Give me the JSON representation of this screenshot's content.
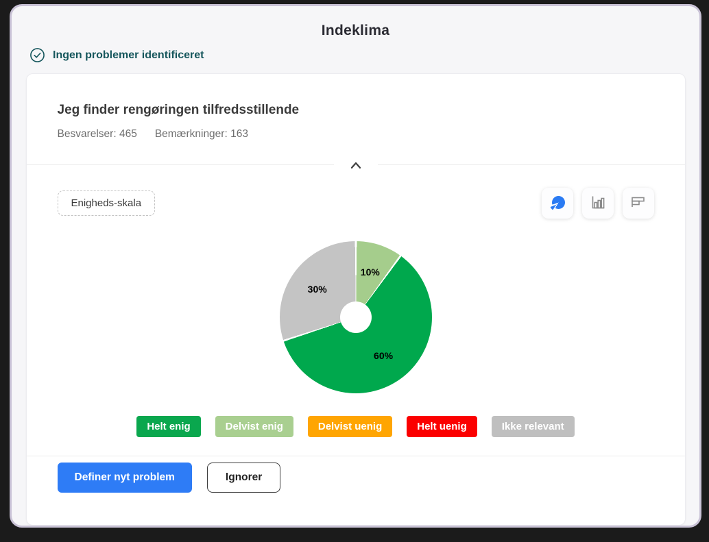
{
  "window": {
    "title": "Indeklima"
  },
  "status": {
    "label": "Ingen problemer identificeret",
    "color": "#15565c"
  },
  "card": {
    "question": "Jeg finder rengøringen tilfredsstillende",
    "responses_label": "Besvarelser: 465",
    "remarks_label": "Bemærkninger: 163"
  },
  "controls": {
    "scale_button_label": "Enigheds-skala",
    "chart_toggles": [
      {
        "id": "pie",
        "icon": "pie-chart-icon",
        "active": true,
        "accent": "#2b7bf3"
      },
      {
        "id": "bar",
        "icon": "bar-chart-icon",
        "active": false,
        "accent": "#8a8a8a"
      },
      {
        "id": "hbar",
        "icon": "horizontal-bar-chart-icon",
        "active": false,
        "accent": "#8a8a8a"
      }
    ]
  },
  "chart_data": {
    "type": "pie",
    "donut": true,
    "title": "",
    "categories": [
      "Helt enig",
      "Delvist enig",
      "Delvist uenig",
      "Helt uenig",
      "Ikke relevant"
    ],
    "values": [
      60,
      10,
      0,
      0,
      30
    ],
    "colors": [
      "#00a84d",
      "#a5cd8c",
      "#ffa502",
      "#fb0000",
      "#c4c4c4"
    ],
    "slices": [
      {
        "label": "Delvist enig",
        "value": 10,
        "color": "#a5cd8c",
        "text": "10%"
      },
      {
        "label": "Helt enig",
        "value": 60,
        "color": "#00a84d",
        "text": "60%"
      },
      {
        "label": "Ikke relevant",
        "value": 30,
        "color": "#c4c4c4",
        "text": "30%"
      }
    ],
    "start_angle_deg": 0,
    "direction": "clockwise",
    "legend_position": "bottom"
  },
  "legend": [
    {
      "label": "Helt enig",
      "color": "#0aa74e"
    },
    {
      "label": "Delvist enig",
      "color": "#a9cf90"
    },
    {
      "label": "Delvist uenig",
      "color": "#ffa502"
    },
    {
      "label": "Helt uenig",
      "color": "#fb0000"
    },
    {
      "label": "Ikke relevant",
      "color": "#bfbfbf"
    }
  ],
  "actions": {
    "define_label": "Definer nyt problem",
    "ignore_label": "Ignorer"
  }
}
